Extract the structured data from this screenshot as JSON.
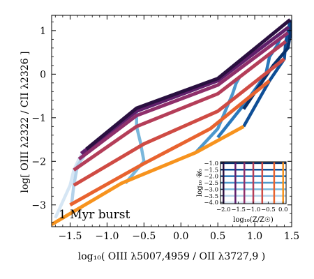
{
  "chart_data": {
    "type": "line",
    "xlabel": "log₁₀( OIII λ5007,4959 / OII λ3727,9 )",
    "ylabel": "log[ OIII λ2322 / CII λ2326 ]",
    "xlim": [
      -1.75,
      1.5
    ],
    "ylim": [
      -3.5,
      1.35
    ],
    "x_ticks": [
      -1.5,
      -1.0,
      -0.5,
      0.0,
      0.5,
      1.0,
      1.5
    ],
    "x_tick_labels": [
      "−1.5",
      "−1.0",
      "−0.5",
      "0.0",
      "0.5",
      "1.0",
      "1.5"
    ],
    "y_ticks": [
      1,
      0,
      -1,
      -2,
      -3
    ],
    "y_tick_labels": [
      "1",
      "0",
      "−1",
      "−2",
      "−3"
    ],
    "annotation": "1 Myr burst",
    "grid": false,
    "metallicity_lines": [
      {
        "logZ": 0.0,
        "color": "#f7931e",
        "points": [
          [
            -1.75,
            -3.45
          ],
          [
            -0.8,
            -2.5
          ],
          [
            0.2,
            -1.8
          ],
          [
            0.85,
            -1.2
          ]
        ]
      },
      {
        "logZ": -0.3,
        "color": "#e8632f",
        "points": [
          [
            -1.5,
            -3.0
          ],
          [
            -0.5,
            -2.05
          ],
          [
            0.4,
            -1.25
          ],
          [
            1.2,
            -0.15
          ]
        ]
      },
      {
        "logZ": -0.7,
        "color": "#cf4b44",
        "points": [
          [
            -1.45,
            -2.55
          ],
          [
            -0.5,
            -1.6
          ],
          [
            0.5,
            -0.85
          ],
          [
            1.4,
            0.35
          ]
        ]
      },
      {
        "logZ": -1.0,
        "color": "#b43e59",
        "points": [
          [
            -1.45,
            -2.2
          ],
          [
            -0.6,
            -1.2
          ],
          [
            0.5,
            -0.45
          ],
          [
            1.42,
            0.75
          ]
        ]
      },
      {
        "logZ": -1.3,
        "color": "#8f2f6b",
        "points": [
          [
            -1.38,
            -1.95
          ],
          [
            -0.6,
            -0.95
          ],
          [
            0.5,
            -0.25
          ],
          [
            1.45,
            0.95
          ]
        ]
      },
      {
        "logZ": -1.6,
        "color": "#5f1f6b",
        "points": [
          [
            -1.35,
            -1.82
          ],
          [
            -0.6,
            -0.85
          ],
          [
            0.5,
            -0.15
          ],
          [
            1.46,
            1.08
          ]
        ]
      },
      {
        "logZ": -2.0,
        "color": "#2a1040",
        "points": [
          [
            -1.28,
            -1.72
          ],
          [
            -0.6,
            -0.78
          ],
          [
            0.5,
            -0.1
          ],
          [
            1.48,
            1.25
          ]
        ]
      }
    ],
    "ionization_lines": [
      {
        "logU": -4.0,
        "color": "#d6e6f4",
        "points": [
          [
            -1.7,
            -3.3
          ],
          [
            -1.5,
            -2.55
          ],
          [
            -1.45,
            -2.2
          ],
          [
            -1.38,
            -1.95
          ],
          [
            -1.3,
            -1.72
          ]
        ]
      },
      {
        "logU": -3.5,
        "color": "#b4d2ea",
        "points": [
          [
            -1.48,
            -3.0
          ],
          [
            -1.45,
            -2.55
          ],
          [
            -1.4,
            -2.1
          ],
          [
            -1.3,
            -1.85
          ],
          [
            -1.2,
            -1.7
          ]
        ]
      },
      {
        "logZ": null,
        "logU": -3.0,
        "color": "#7ab7db",
        "points": [
          [
            -0.75,
            -2.5
          ],
          [
            -0.5,
            -2.0
          ],
          [
            -0.55,
            -1.55
          ],
          [
            -0.6,
            -1.2
          ],
          [
            -0.6,
            -0.95
          ],
          [
            -0.6,
            -0.8
          ]
        ]
      },
      {
        "logU": -2.5,
        "color": "#4d98cc",
        "points": [
          [
            0.2,
            -1.8
          ],
          [
            0.5,
            -1.25
          ],
          [
            0.6,
            -0.85
          ],
          [
            0.7,
            -0.45
          ],
          [
            0.75,
            -0.2
          ],
          [
            0.8,
            -0.05
          ]
        ]
      },
      {
        "logU": -2.0,
        "color": "#2a78bb",
        "points": [
          [
            0.5,
            -1.45
          ],
          [
            0.9,
            -0.6
          ],
          [
            1.15,
            0.0
          ],
          [
            1.2,
            0.4
          ],
          [
            1.3,
            0.65
          ],
          [
            1.35,
            0.85
          ]
        ]
      },
      {
        "logU": -1.5,
        "color": "#0f4e96",
        "points": [
          [
            0.85,
            -1.2
          ],
          [
            1.2,
            -0.15
          ],
          [
            1.4,
            0.35
          ],
          [
            1.42,
            0.75
          ],
          [
            1.45,
            0.95
          ],
          [
            1.48,
            1.25
          ]
        ]
      },
      {
        "logU": -1.0,
        "color": "#08306b",
        "points": [
          [
            0.85,
            -0.8
          ],
          [
            1.25,
            0.2
          ],
          [
            1.45,
            0.6
          ],
          [
            1.48,
            0.9
          ],
          [
            1.5,
            1.2
          ]
        ]
      }
    ],
    "inset": {
      "ylabel": "log₁₀ 𝒰₀",
      "xlabel": "log₁₀(Z/Z☉)",
      "x_ticks": [
        -2.0,
        -1.5,
        -1.0,
        -0.5,
        0.0
      ],
      "x_tick_labels": [
        "−2.0",
        "−1.5",
        "−1.0",
        "−0.5",
        "0.0"
      ],
      "y_ticks": [
        -1.0,
        -1.5,
        -2.0,
        -2.5,
        -3.0,
        -3.5,
        -4.0
      ],
      "y_tick_labels": [
        "−1.0",
        "−1.5",
        "−2.0",
        "−2.5",
        "−3.0",
        "−3.5",
        "−4.0"
      ],
      "xlim": [
        -2.1,
        0.1
      ],
      "ylim": [
        -4.1,
        -0.9
      ]
    }
  }
}
